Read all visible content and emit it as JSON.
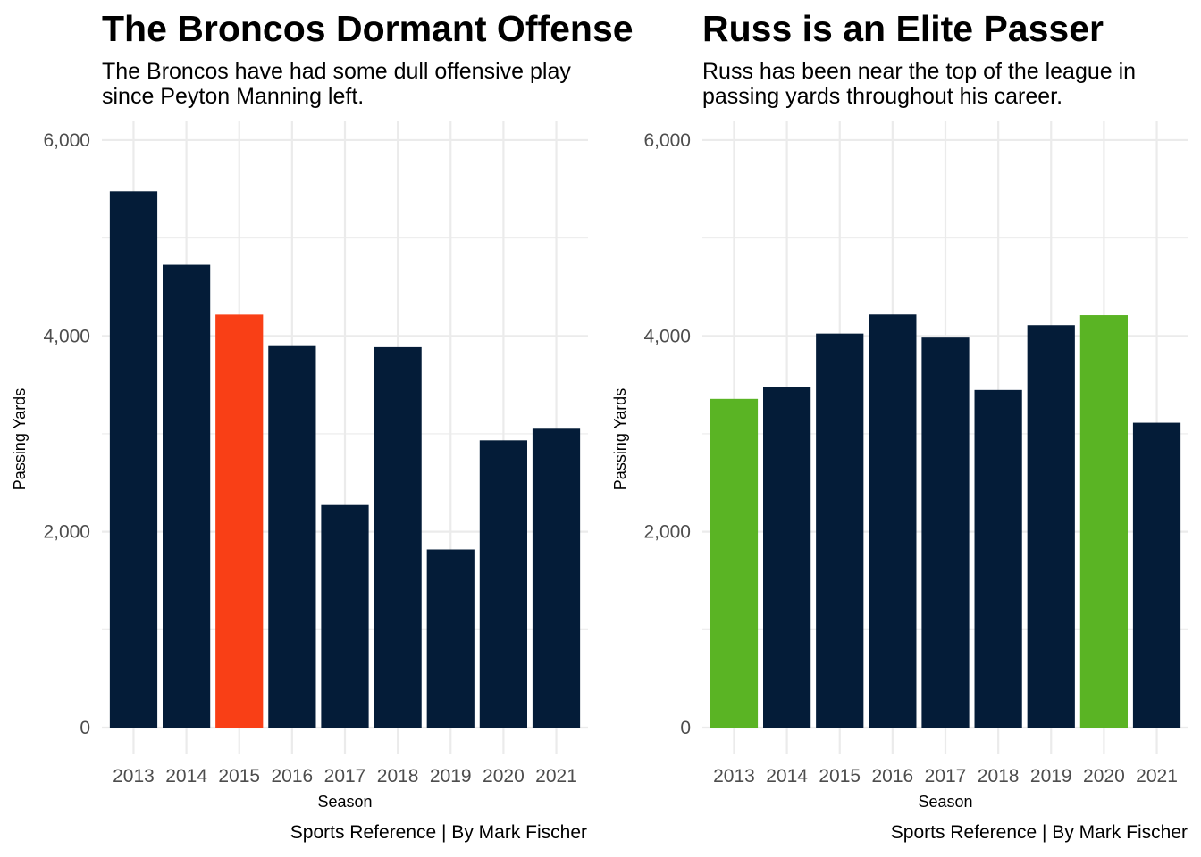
{
  "chart_data": [
    {
      "type": "bar",
      "title": "The Broncos Dormant Offense",
      "subtitle": "The Broncos have had some dull offensive play since Peyton Manning left.",
      "caption": "Sports Reference | By Mark Fischer",
      "xlabel": "Season",
      "ylabel": "Passing Yards",
      "categories": [
        "2013",
        "2014",
        "2015",
        "2016",
        "2017",
        "2018",
        "2019",
        "2020",
        "2021"
      ],
      "values": [
        5477,
        4727,
        4218,
        3896,
        2273,
        3885,
        1819,
        2933,
        3052
      ],
      "bar_colors": [
        "#041c38",
        "#041c38",
        "#f93f16",
        "#041c38",
        "#041c38",
        "#041c38",
        "#041c38",
        "#041c38",
        "#041c38"
      ],
      "ylim": [
        0,
        6200
      ],
      "yticks": [
        0,
        2000,
        4000,
        6000
      ],
      "ytick_labels": [
        "0",
        "2,000",
        "4,000",
        "6,000"
      ],
      "grid": true
    },
    {
      "type": "bar",
      "title": "Russ is an Elite Passer",
      "subtitle": "Russ has been near the top of the league in passing yards throughout his career.",
      "caption": "Sports Reference | By Mark Fischer",
      "xlabel": "Season",
      "ylabel": "Passing Yards",
      "categories": [
        "2013",
        "2014",
        "2015",
        "2016",
        "2017",
        "2018",
        "2019",
        "2020",
        "2021"
      ],
      "values": [
        3357,
        3475,
        4024,
        4219,
        3983,
        3448,
        4110,
        4212,
        3113
      ],
      "bar_colors": [
        "#5ab424",
        "#041c38",
        "#041c38",
        "#041c38",
        "#041c38",
        "#041c38",
        "#041c38",
        "#5ab424",
        "#041c38"
      ],
      "ylim": [
        0,
        6200
      ],
      "yticks": [
        0,
        2000,
        4000,
        6000
      ],
      "ytick_labels": [
        "0",
        "2,000",
        "4,000",
        "6,000"
      ],
      "grid": true
    }
  ]
}
